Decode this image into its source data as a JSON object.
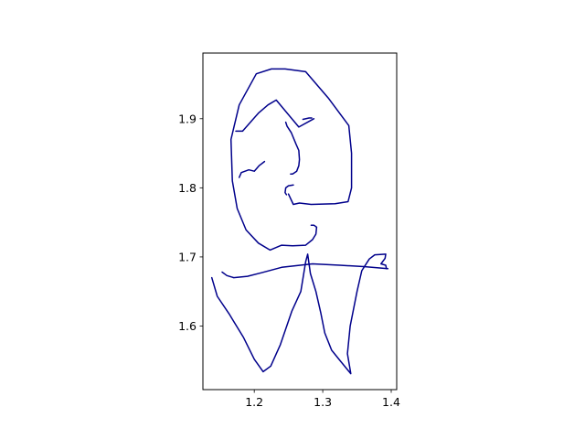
{
  "chart_data": {
    "type": "line",
    "title": "",
    "xlabel": "",
    "ylabel": "",
    "xlim": [
      1.125,
      1.408
    ],
    "ylim": [
      1.508,
      1.995
    ],
    "x_ticks": [
      1.2,
      1.3,
      1.4
    ],
    "x_tick_labels": [
      "1.2",
      "1.3",
      "1.4"
    ],
    "y_ticks": [
      1.6,
      1.7,
      1.8,
      1.9
    ],
    "y_tick_labels": [
      "1.6",
      "1.7",
      "1.8",
      "1.9"
    ],
    "grid": false,
    "line_color": "#00008b",
    "series": [
      {
        "points": [
          [
            1.287,
            1.9
          ],
          [
            1.265,
            1.888
          ],
          [
            1.232,
            1.927
          ],
          [
            1.22,
            1.92
          ],
          [
            1.206,
            1.908
          ],
          [
            1.183,
            1.882
          ],
          [
            1.173,
            1.882
          ]
        ]
      },
      {
        "points": [
          [
            1.246,
            1.895
          ],
          [
            1.248,
            1.889
          ],
          [
            1.254,
            1.88
          ],
          [
            1.261,
            1.863
          ],
          [
            1.265,
            1.854
          ],
          [
            1.266,
            1.841
          ],
          [
            1.265,
            1.832
          ],
          [
            1.262,
            1.824
          ],
          [
            1.256,
            1.82
          ],
          [
            1.253,
            1.82
          ]
        ]
      },
      {
        "points": [
          [
            1.271,
            1.899
          ],
          [
            1.28,
            1.901
          ],
          [
            1.284,
            1.901
          ]
        ]
      },
      {
        "points": [
          [
            1.257,
            1.804
          ],
          [
            1.25,
            1.803
          ],
          [
            1.246,
            1.8
          ],
          [
            1.245,
            1.793
          ],
          [
            1.247,
            1.79
          ]
        ]
      },
      {
        "points": [
          [
            1.283,
            1.746
          ],
          [
            1.287,
            1.746
          ],
          [
            1.291,
            1.743
          ],
          [
            1.29,
            1.733
          ],
          [
            1.285,
            1.725
          ],
          [
            1.275,
            1.717
          ],
          [
            1.256,
            1.716
          ],
          [
            1.24,
            1.717
          ],
          [
            1.223,
            1.71
          ],
          [
            1.206,
            1.72
          ],
          [
            1.188,
            1.739
          ],
          [
            1.175,
            1.77
          ],
          [
            1.168,
            1.81
          ],
          [
            1.166,
            1.87
          ],
          [
            1.178,
            1.92
          ],
          [
            1.203,
            1.965
          ],
          [
            1.225,
            1.972
          ],
          [
            1.245,
            1.972
          ],
          [
            1.275,
            1.968
          ],
          [
            1.308,
            1.93
          ],
          [
            1.338,
            1.89
          ],
          [
            1.342,
            1.85
          ],
          [
            1.342,
            1.8
          ],
          [
            1.337,
            1.78
          ],
          [
            1.318,
            1.777
          ],
          [
            1.283,
            1.776
          ],
          [
            1.266,
            1.778
          ],
          [
            1.257,
            1.776
          ],
          [
            1.25,
            1.791
          ]
        ]
      },
      {
        "points": [
          [
            1.178,
            1.815
          ],
          [
            1.181,
            1.822
          ],
          [
            1.192,
            1.826
          ],
          [
            1.2,
            1.824
          ],
          [
            1.207,
            1.832
          ],
          [
            1.215,
            1.838
          ]
        ]
      },
      {
        "points": [
          [
            1.153,
            1.678
          ],
          [
            1.16,
            1.673
          ],
          [
            1.17,
            1.67
          ],
          [
            1.19,
            1.672
          ],
          [
            1.21,
            1.677
          ],
          [
            1.24,
            1.685
          ],
          [
            1.285,
            1.69
          ],
          [
            1.325,
            1.688
          ],
          [
            1.36,
            1.686
          ],
          [
            1.395,
            1.683
          ]
        ]
      },
      {
        "points": [
          [
            1.138,
            1.67
          ],
          [
            1.146,
            1.643
          ],
          [
            1.163,
            1.618
          ],
          [
            1.184,
            1.584
          ],
          [
            1.2,
            1.552
          ],
          [
            1.213,
            1.534
          ],
          [
            1.224,
            1.542
          ],
          [
            1.238,
            1.573
          ],
          [
            1.255,
            1.622
          ],
          [
            1.268,
            1.65
          ],
          [
            1.275,
            1.693
          ],
          [
            1.278,
            1.704
          ],
          [
            1.282,
            1.676
          ],
          [
            1.29,
            1.65
          ],
          [
            1.297,
            1.62
          ],
          [
            1.303,
            1.59
          ],
          [
            1.313,
            1.565
          ],
          [
            1.326,
            1.549
          ],
          [
            1.341,
            1.531
          ],
          [
            1.336,
            1.56
          ],
          [
            1.34,
            1.6
          ],
          [
            1.35,
            1.65
          ],
          [
            1.357,
            1.68
          ],
          [
            1.368,
            1.697
          ],
          [
            1.376,
            1.703
          ],
          [
            1.392,
            1.704
          ],
          [
            1.391,
            1.698
          ],
          [
            1.385,
            1.69
          ],
          [
            1.392,
            1.688
          ],
          [
            1.393,
            1.683
          ]
        ]
      }
    ]
  }
}
